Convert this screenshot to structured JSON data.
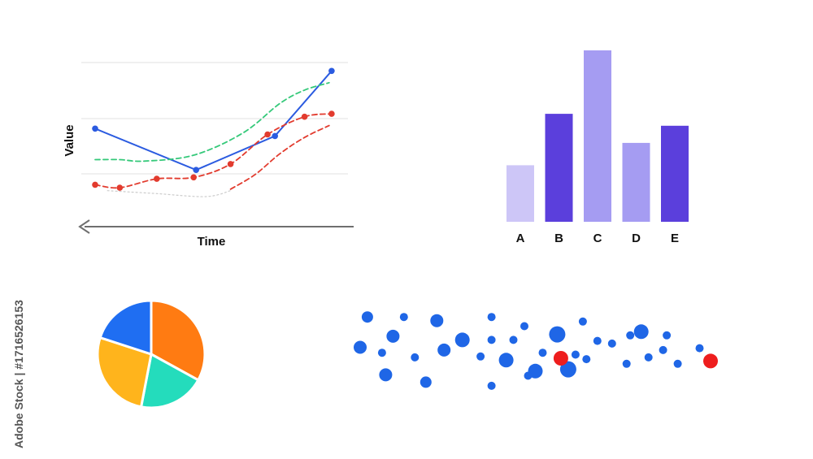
{
  "watermark": {
    "brand": "Adobe Stock",
    "id": "#1716526153",
    "side_text": "Adobe Stock | #1716526153"
  },
  "chart_data": [
    {
      "type": "line",
      "xlabel": "Time",
      "ylabel": "Value",
      "grid": true,
      "xlim": [
        0,
        10
      ],
      "ylim": [
        0,
        10
      ],
      "series": [
        {
          "color": "#2b5be0",
          "style": "solid",
          "markers": true,
          "x": [
            0,
            4.1,
            7.3,
            9.6
          ],
          "y": [
            5.7,
            2.9,
            5.2,
            9.6
          ]
        },
        {
          "color": "#35c97a",
          "style": "dashed",
          "markers": false,
          "x": [
            0,
            1.0,
            2.0,
            4.0,
            6.0,
            7.5,
            8.5,
            9.5
          ],
          "y": [
            3.6,
            3.6,
            3.5,
            3.9,
            5.4,
            7.4,
            8.3,
            8.8
          ]
        },
        {
          "color": "#e23b2e",
          "style": "dashed",
          "markers": true,
          "x": [
            0,
            1.0,
            2.5,
            4.0,
            5.5,
            7.0,
            8.5,
            9.6
          ],
          "y": [
            1.9,
            1.7,
            2.3,
            2.4,
            3.3,
            5.3,
            6.5,
            6.7
          ]
        },
        {
          "color": "#e23b2e",
          "style": "dashed",
          "markers": false,
          "x": [
            5.5,
            6.5,
            7.5,
            8.5,
            9.5
          ],
          "y": [
            1.6,
            2.6,
            4.0,
            5.1,
            5.9
          ]
        },
        {
          "color": "#cccccc",
          "style": "dotted",
          "markers": false,
          "x": [
            0.5,
            2.5,
            4.5,
            5.5
          ],
          "y": [
            1.5,
            1.3,
            1.1,
            1.5
          ]
        }
      ]
    },
    {
      "type": "bar",
      "categories": [
        "A",
        "B",
        "C",
        "D",
        "E"
      ],
      "values": [
        33,
        63,
        100,
        46,
        56
      ],
      "colors": [
        "#cdc6f7",
        "#5b3fdc",
        "#a59cf2",
        "#a59cf2",
        "#5b3fdc"
      ],
      "ylim": [
        0,
        100
      ]
    },
    {
      "type": "pie",
      "values": [
        33,
        20,
        27,
        20
      ],
      "colors": [
        "#ff7b12",
        "#24dcbc",
        "#ffb41c",
        "#1f6ef2"
      ]
    },
    {
      "type": "scatter",
      "xlim": [
        0,
        100
      ],
      "ylim": [
        0,
        100
      ],
      "points": [
        {
          "x": 6,
          "y": 91,
          "s": 7,
          "c": "#1f66e6"
        },
        {
          "x": 16,
          "y": 91,
          "s": 5,
          "c": "#1f66e6"
        },
        {
          "x": 25,
          "y": 87,
          "s": 8,
          "c": "#1f66e6"
        },
        {
          "x": 40,
          "y": 91,
          "s": 5,
          "c": "#1f66e6"
        },
        {
          "x": 49,
          "y": 81,
          "s": 5,
          "c": "#1f66e6"
        },
        {
          "x": 65,
          "y": 86,
          "s": 5,
          "c": "#1f66e6"
        },
        {
          "x": 78,
          "y": 71,
          "s": 5,
          "c": "#1f66e6"
        },
        {
          "x": 4,
          "y": 58,
          "s": 8,
          "c": "#1f66e6"
        },
        {
          "x": 13,
          "y": 70,
          "s": 8,
          "c": "#1f66e6"
        },
        {
          "x": 10,
          "y": 52,
          "s": 5,
          "c": "#1f66e6"
        },
        {
          "x": 19,
          "y": 47,
          "s": 5,
          "c": "#1f66e6"
        },
        {
          "x": 27,
          "y": 55,
          "s": 8,
          "c": "#1f66e6"
        },
        {
          "x": 32,
          "y": 66,
          "s": 9,
          "c": "#1f66e6"
        },
        {
          "x": 37,
          "y": 48,
          "s": 5,
          "c": "#1f66e6"
        },
        {
          "x": 40,
          "y": 66,
          "s": 5,
          "c": "#1f66e6"
        },
        {
          "x": 46,
          "y": 66,
          "s": 5,
          "c": "#1f66e6"
        },
        {
          "x": 44,
          "y": 44,
          "s": 9,
          "c": "#1f66e6"
        },
        {
          "x": 54,
          "y": 52,
          "s": 5,
          "c": "#1f66e6"
        },
        {
          "x": 58,
          "y": 72,
          "s": 10,
          "c": "#1f66e6"
        },
        {
          "x": 66,
          "y": 45,
          "s": 5,
          "c": "#1f66e6"
        },
        {
          "x": 69,
          "y": 65,
          "s": 5,
          "c": "#1f66e6"
        },
        {
          "x": 73,
          "y": 62,
          "s": 5,
          "c": "#1f66e6"
        },
        {
          "x": 81,
          "y": 75,
          "s": 9,
          "c": "#1f66e6"
        },
        {
          "x": 77,
          "y": 40,
          "s": 5,
          "c": "#1f66e6"
        },
        {
          "x": 83,
          "y": 47,
          "s": 5,
          "c": "#1f66e6"
        },
        {
          "x": 88,
          "y": 71,
          "s": 5,
          "c": "#1f66e6"
        },
        {
          "x": 87,
          "y": 55,
          "s": 5,
          "c": "#1f66e6"
        },
        {
          "x": 91,
          "y": 40,
          "s": 5,
          "c": "#1f66e6"
        },
        {
          "x": 97,
          "y": 57,
          "s": 5,
          "c": "#1f66e6"
        },
        {
          "x": 52,
          "y": 32,
          "s": 9,
          "c": "#1f66e6"
        },
        {
          "x": 11,
          "y": 28,
          "s": 8,
          "c": "#1f66e6"
        },
        {
          "x": 22,
          "y": 20,
          "s": 7,
          "c": "#1f66e6"
        },
        {
          "x": 40,
          "y": 16,
          "s": 5,
          "c": "#1f66e6"
        },
        {
          "x": 50,
          "y": 27,
          "s": 5,
          "c": "#1f66e6"
        },
        {
          "x": 61,
          "y": 34,
          "s": 10,
          "c": "#1f66e6"
        },
        {
          "x": 63,
          "y": 50,
          "s": 5,
          "c": "#1f66e6"
        },
        {
          "x": 100,
          "y": 43,
          "s": 9,
          "c": "#ee1d1d"
        },
        {
          "x": 59,
          "y": 46,
          "s": 9,
          "c": "#ee1d1d"
        }
      ]
    }
  ]
}
